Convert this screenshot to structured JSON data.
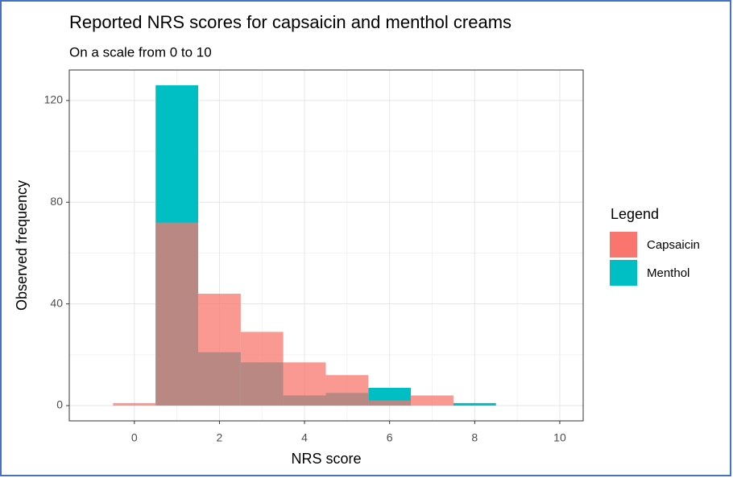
{
  "chart_data": {
    "type": "histogram",
    "title": "Reported NRS scores for capsaicin and menthol creams",
    "subtitle": "On a scale from 0 to 10",
    "x_label": "NRS score",
    "y_label": "Observed frequency",
    "legend_title": "Legend",
    "legend_position": "right",
    "grid": true,
    "bins": [
      -0.5,
      0.5,
      1.5,
      2.5,
      3.5,
      4.5,
      5.5,
      6.5,
      7.5,
      8.5
    ],
    "series": [
      {
        "name": "Capsaicin",
        "color": "#F8766D",
        "values": [
          1,
          72,
          44,
          29,
          17,
          12,
          2,
          4,
          0
        ]
      },
      {
        "name": "Menthol",
        "color": "#00BFC4",
        "values": [
          0,
          126,
          21,
          17,
          4,
          5,
          7,
          0,
          1
        ]
      }
    ],
    "xlim": [
      -1.53,
      10.55
    ],
    "xticks": [
      0,
      2,
      4,
      6,
      8,
      10
    ],
    "ylim": [
      -6,
      132
    ],
    "yticks": [
      0,
      40,
      80,
      120
    ]
  }
}
